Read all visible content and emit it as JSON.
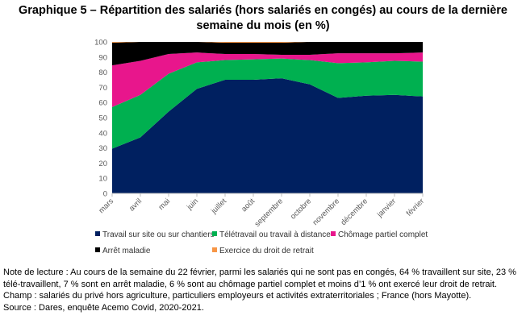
{
  "chart_data": {
    "type": "area",
    "stacked": true,
    "title": "Graphique 5 – Répartition des salariés (hors salariés en congés) au cours de la dernière semaine du mois (en %)",
    "categories": [
      "mars",
      "avril",
      "mai",
      "juin",
      "juillet",
      "août",
      "septembre",
      "octobre",
      "novembre",
      "décembre",
      "janvier",
      "février"
    ],
    "ylim": [
      0,
      100
    ],
    "yticks": [
      0,
      10,
      20,
      30,
      40,
      50,
      60,
      70,
      80,
      90,
      100
    ],
    "legend_position": "bottom",
    "series": [
      {
        "name": "Travail sur site ou sur chantiers",
        "color": "#002060",
        "values": [
          29.5,
          37,
          54,
          69,
          75,
          75,
          76,
          72,
          63,
          64.5,
          65,
          64
        ]
      },
      {
        "name": "Télétravail ou travail à distance",
        "color": "#00B050",
        "values": [
          27.5,
          28,
          25,
          17.5,
          13,
          13.5,
          13,
          16,
          23,
          22,
          22.5,
          23
        ]
      },
      {
        "name": "Chômage partiel complet",
        "color": "#E8168C",
        "values": [
          27.5,
          22.5,
          13,
          6.5,
          4,
          3.5,
          2.5,
          3.5,
          6.5,
          6,
          5,
          6
        ]
      },
      {
        "name": "Arrêt maladie",
        "color": "#000000",
        "values": [
          15,
          12.5,
          8,
          7,
          7.5,
          7.5,
          8,
          8.5,
          7.5,
          7.5,
          7.5,
          7
        ]
      },
      {
        "name": "Exercice du droit de retrait",
        "color": "#F79646",
        "values": [
          0.5,
          0,
          0,
          0,
          0.5,
          0.5,
          0.5,
          0,
          0,
          0,
          0,
          0
        ]
      }
    ]
  },
  "notes": {
    "lecture": "Note de lecture : Au cours de la semaine du 22 février, parmi les salariés qui ne sont pas en congés, 64 % travaillent sur site, 23 % télé-travaillent, 7 % sont en arrêt maladie, 6 % sont au chômage partiel complet et moins d’1 % ont exercé leur droit de retrait.",
    "champ": "Champ : salariés du privé hors agriculture, particuliers employeurs et activités extraterritoriales ; France (hors Mayotte).",
    "source": "Source : Dares, enquête Acemo Covid, 2020-2021."
  }
}
